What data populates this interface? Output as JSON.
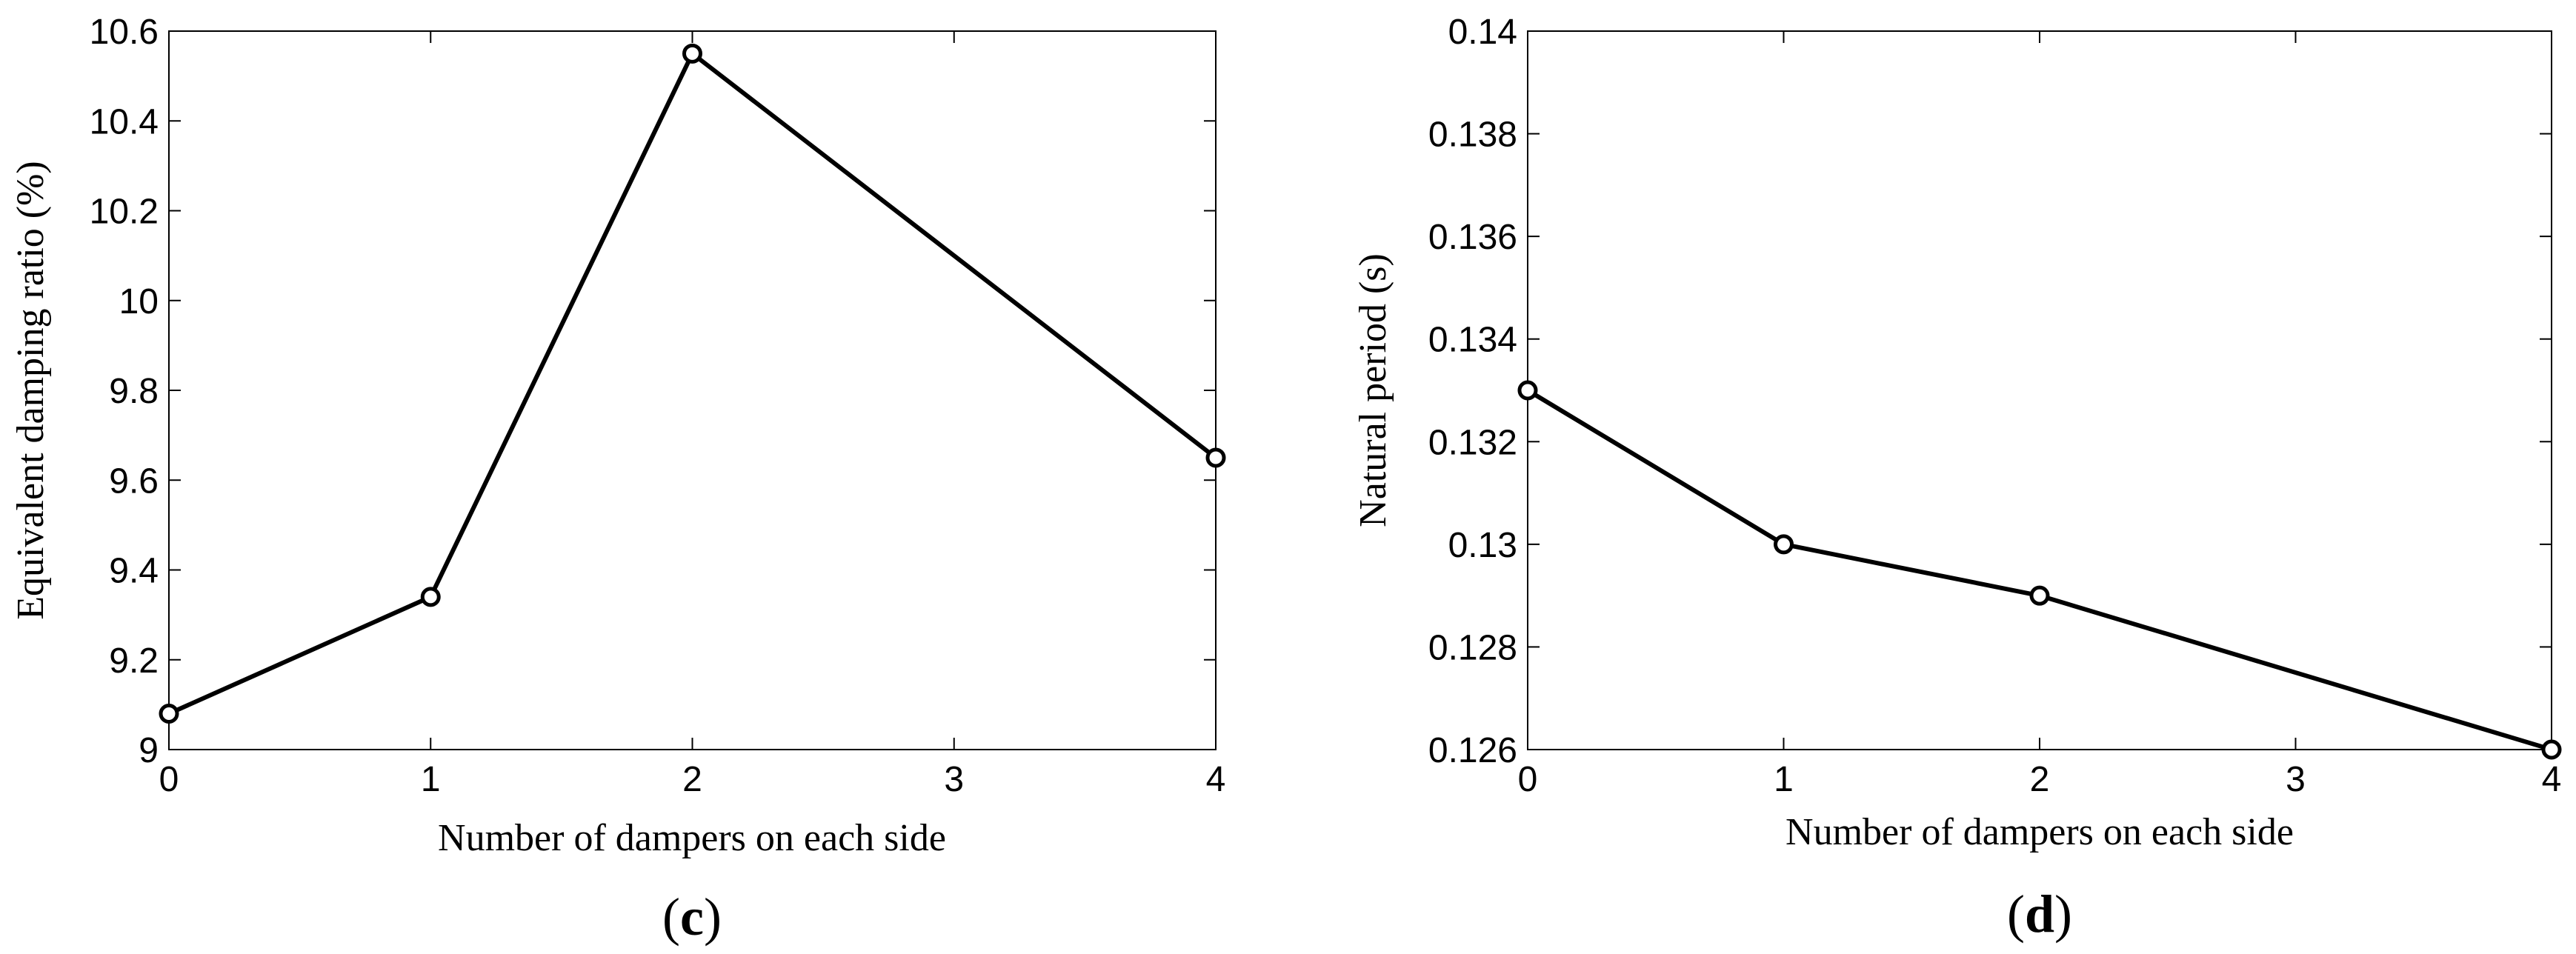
{
  "chart_data": [
    {
      "type": "line",
      "panel": "c",
      "xlabel": "Number of dampers on each side",
      "ylabel": "Equivalent damping ratio (%)",
      "x": [
        0,
        1,
        2,
        4
      ],
      "series": [
        {
          "values": [
            9.08,
            9.34,
            10.55,
            9.65
          ]
        }
      ],
      "xlim": [
        0,
        4
      ],
      "ylim": [
        9,
        10.6
      ],
      "xticks": [
        0,
        1,
        2,
        3,
        4
      ],
      "xtick_labels": [
        "0",
        "1",
        "2",
        "3",
        "4"
      ],
      "yticks": [
        9,
        9.2,
        9.4,
        9.6,
        9.8,
        10,
        10.2,
        10.4,
        10.6
      ],
      "ytick_labels": [
        "9",
        "9.2",
        "9.4",
        "9.6",
        "9.8",
        "10",
        "10.2",
        "10.4",
        "10.6"
      ],
      "grid": false,
      "marker": "circle",
      "line_color": "#000000"
    },
    {
      "type": "line",
      "panel": "d",
      "xlabel": "Number of dampers on each side",
      "ylabel": "Natural period (s)",
      "x": [
        0,
        1,
        2,
        4
      ],
      "series": [
        {
          "values": [
            0.133,
            0.13,
            0.129,
            0.126
          ]
        }
      ],
      "xlim": [
        0,
        4
      ],
      "ylim": [
        0.126,
        0.14
      ],
      "xticks": [
        0,
        1,
        2,
        3,
        4
      ],
      "xtick_labels": [
        "0",
        "1",
        "2",
        "3",
        "4"
      ],
      "yticks": [
        0.126,
        0.128,
        0.13,
        0.132,
        0.134,
        0.136,
        0.138,
        0.14
      ],
      "ytick_labels": [
        "0.126",
        "0.128",
        "0.13",
        "0.132",
        "0.134",
        "0.136",
        "0.138",
        "0.14"
      ],
      "grid": false,
      "marker": "circle",
      "line_color": "#000000"
    }
  ]
}
